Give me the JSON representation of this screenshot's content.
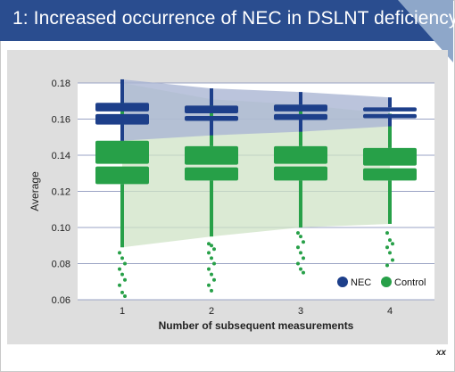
{
  "header": {
    "title": "1: Increased occurrence of NEC in DSLNT deficiency"
  },
  "footer": {
    "code": "xx"
  },
  "colors": {
    "header_bg": "#2a4d8f",
    "nec": "#1d3f8a",
    "control": "#27a048",
    "nec_band": "#aab5d3",
    "control_band": "#cfe3c6",
    "gridline": "#9aa3c4",
    "panel_bg": "#dedede",
    "plot_bg": "#ffffff"
  },
  "chart_data": {
    "type": "boxplot",
    "xlabel": "Number of subsequent measurements",
    "ylabel": "Average",
    "categories": [
      "1",
      "2",
      "3",
      "4"
    ],
    "ylim": [
      0.06,
      0.18
    ],
    "yticks": [
      "0.06",
      "0.08",
      "0.10",
      "0.12",
      "0.14",
      "0.16",
      "0.18"
    ],
    "grid": true,
    "legend_position": "bottom-right",
    "series": [
      {
        "name": "NEC",
        "boxes": [
          {
            "whisker_low": 0.148,
            "q1": 0.157,
            "median": 0.1635,
            "q3": 0.169,
            "whisker_high": 0.182
          },
          {
            "whisker_low": 0.151,
            "q1": 0.159,
            "median": 0.1625,
            "q3": 0.1675,
            "whisker_high": 0.177
          },
          {
            "whisker_low": 0.153,
            "q1": 0.1595,
            "median": 0.1635,
            "q3": 0.168,
            "whisker_high": 0.175
          },
          {
            "whisker_low": 0.156,
            "q1": 0.1605,
            "median": 0.1635,
            "q3": 0.1665,
            "whisker_high": 0.172
          }
        ],
        "outliers": [
          [],
          [],
          [],
          []
        ]
      },
      {
        "name": "Control",
        "boxes": [
          {
            "whisker_low": 0.089,
            "q1": 0.124,
            "median": 0.1345,
            "q3": 0.148,
            "whisker_high": 0.18
          },
          {
            "whisker_low": 0.095,
            "q1": 0.126,
            "median": 0.134,
            "q3": 0.145,
            "whisker_high": 0.171
          },
          {
            "whisker_low": 0.1,
            "q1": 0.126,
            "median": 0.1345,
            "q3": 0.145,
            "whisker_high": 0.168
          },
          {
            "whisker_low": 0.102,
            "q1": 0.126,
            "median": 0.1335,
            "q3": 0.144,
            "whisker_high": 0.163
          }
        ],
        "outliers": [
          [
            0.086,
            0.083,
            0.08,
            0.077,
            0.074,
            0.071,
            0.068,
            0.064,
            0.062
          ],
          [
            0.091,
            0.09,
            0.088,
            0.086,
            0.083,
            0.08,
            0.077,
            0.074,
            0.071,
            0.068,
            0.065
          ],
          [
            0.097,
            0.095,
            0.092,
            0.089,
            0.086,
            0.083,
            0.08,
            0.077,
            0.075
          ],
          [
            0.097,
            0.093,
            0.091,
            0.089,
            0.086,
            0.082,
            0.079
          ]
        ]
      }
    ]
  }
}
